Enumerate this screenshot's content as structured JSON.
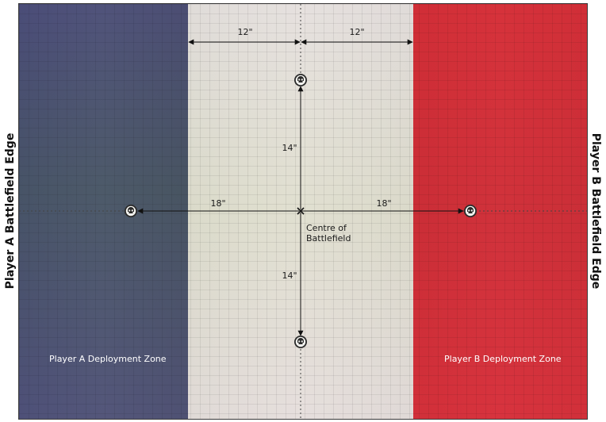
{
  "edges": {
    "player_a": "Player A Battlefield Edge",
    "player_b": "Player B Battlefield Edge"
  },
  "zones": {
    "player_a_deployment": "Player A Deployment Zone",
    "player_b_deployment": "Player B Deployment Zone"
  },
  "centre": {
    "line1": "Centre of",
    "line2": "Battlefield"
  },
  "measurements": {
    "top_left": "12\"",
    "top_right": "12\"",
    "up": "14\"",
    "down": "14\"",
    "left": "18\"",
    "right": "18\""
  },
  "objectives": [
    {
      "icon": "skull-marker-icon",
      "position": "north"
    },
    {
      "icon": "skull-marker-icon",
      "position": "south"
    },
    {
      "icon": "skull-marker-icon",
      "position": "west"
    },
    {
      "icon": "skull-marker-icon",
      "position": "east"
    }
  ],
  "colors": {
    "player_a_zone": "#535678",
    "no_mans_land": "#e2e0d6",
    "player_b_zone": "#d4343c"
  }
}
